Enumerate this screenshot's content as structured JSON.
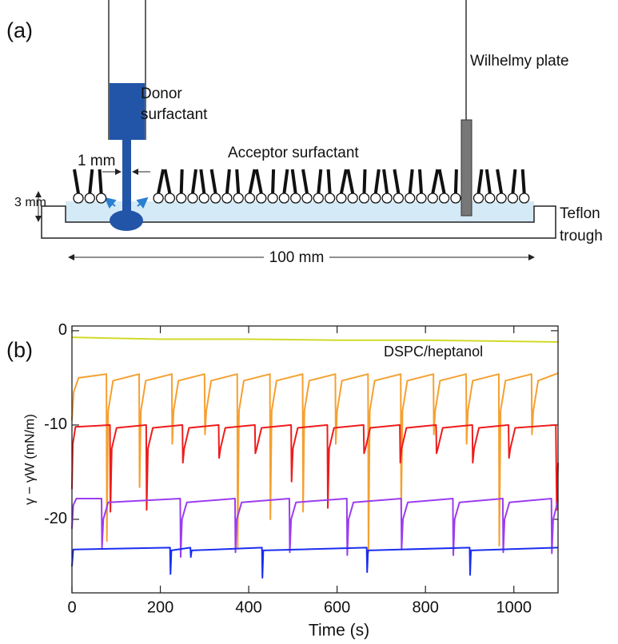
{
  "diagram": {
    "panel_label": "(a)",
    "donor": [
      "Donor",
      "surfactant"
    ],
    "plate": "Wilhelmy plate",
    "acceptor": "Acceptor surfactant",
    "gap": "1 mm",
    "depth": "3 mm",
    "trough": [
      "Teflon",
      "trough"
    ],
    "length": "100 mm"
  },
  "chart_data": {
    "type": "line",
    "panel_label": "(b)",
    "x_label": "Time (s)",
    "y_label": "γ − γW (mN/m)",
    "annotation": "DSPC/heptanol",
    "xlim": [
      0,
      1100
    ],
    "xticks": [
      0,
      200,
      400,
      600,
      800,
      1000
    ],
    "ylim": [
      -27.8,
      0.5
    ],
    "yticks": [
      0,
      -10,
      -20
    ],
    "series": [
      {
        "color": "#d2da2a",
        "x": [
          0,
          200,
          400,
          600,
          800,
          1100
        ],
        "values": [
          -0.7,
          -0.9,
          -0.9,
          -1.0,
          -1.0,
          -1.2
        ]
      },
      {
        "color": "#f5a030",
        "x": [
          0,
          4,
          15,
          78,
          79,
          82,
          93,
          152,
          153,
          156,
          167,
          226,
          227,
          230,
          241,
          300,
          301,
          304,
          315,
          374,
          375,
          378,
          389,
          448,
          449,
          452,
          463,
          522,
          523,
          526,
          537,
          596,
          597,
          600,
          611,
          670,
          671,
          674,
          685,
          744,
          745,
          748,
          759,
          818,
          819,
          822,
          833,
          892,
          893,
          896,
          907,
          966,
          967,
          970,
          981,
          1040,
          1041,
          1044,
          1055,
          1100
        ],
        "values": [
          -9.5,
          -6.5,
          -5,
          -4.6,
          -22.3,
          -8.5,
          -5.3,
          -4.6,
          -16.6,
          -8.5,
          -5.3,
          -4.6,
          -12,
          -8.5,
          -5.3,
          -4.6,
          -11,
          -8.5,
          -5.3,
          -4.6,
          -23,
          -8.5,
          -5.3,
          -4.6,
          -20,
          -8.5,
          -5.3,
          -4.6,
          -19.2,
          -8.5,
          -5.3,
          -4.6,
          -12,
          -8.5,
          -5.3,
          -4.6,
          -23.5,
          -8.5,
          -5.3,
          -4.6,
          -19,
          -8.5,
          -5.3,
          -4.6,
          -11,
          -8.5,
          -5.3,
          -4.6,
          -12,
          -8.5,
          -5.3,
          -4.6,
          -22.8,
          -8.5,
          -5.3,
          -4.6,
          -11,
          -8.5,
          -5.3,
          -4.5
        ]
      },
      {
        "color": "#ee1c1c",
        "x": [
          0,
          2,
          8,
          86,
          87,
          90,
          101,
          168,
          169,
          172,
          183,
          250,
          251,
          254,
          265,
          332,
          333,
          336,
          347,
          414,
          415,
          418,
          429,
          496,
          497,
          500,
          511,
          578,
          579,
          582,
          593,
          660,
          661,
          664,
          675,
          742,
          743,
          746,
          757,
          824,
          825,
          828,
          839,
          906,
          907,
          910,
          921,
          988,
          989,
          992,
          1003,
          1095,
          1097,
          1100
        ],
        "values": [
          -16.8,
          -12,
          -10.2,
          -10,
          -19.2,
          -12.5,
          -10.3,
          -10,
          -19,
          -12.5,
          -10.3,
          -10,
          -14,
          -12.5,
          -10.3,
          -10,
          -13.5,
          -12.5,
          -10.3,
          -10,
          -13,
          -12.5,
          -10.3,
          -10,
          -16,
          -12.5,
          -10.3,
          -10,
          -18.8,
          -12.5,
          -10.3,
          -10,
          -13,
          -12.5,
          -10.3,
          -10,
          -14,
          -12.5,
          -10.3,
          -10,
          -13,
          -12.5,
          -10.3,
          -10,
          -14,
          -12.5,
          -10.3,
          -10,
          -13.5,
          -12.5,
          -10.3,
          -10,
          -19,
          -14
        ]
      },
      {
        "color": "#9b3df0",
        "x": [
          0,
          3,
          10,
          67,
          68,
          71,
          82,
          245,
          246,
          249,
          260,
          369,
          370,
          373,
          384,
          492,
          493,
          496,
          507,
          622,
          623,
          626,
          637,
          745,
          746,
          749,
          760,
          862,
          863,
          866,
          877,
          975,
          976,
          979,
          990,
          1085,
          1086,
          1089,
          1100
        ],
        "values": [
          -21,
          -18.5,
          -17.8,
          -17.8,
          -23,
          -20,
          -18.2,
          -17.8,
          -24,
          -20,
          -18.2,
          -17.8,
          -23.5,
          -20,
          -18.2,
          -17.8,
          -23.5,
          -20,
          -18.2,
          -17.8,
          -23.8,
          -20,
          -18.2,
          -17.8,
          -23.2,
          -20,
          -18.2,
          -17.8,
          -23.8,
          -20,
          -18.2,
          -17.8,
          -23.5,
          -20,
          -18.2,
          -17.8,
          -23.6,
          -20,
          -18
        ]
      },
      {
        "color": "#1a2ef0",
        "x": [
          0,
          3,
          222,
          223,
          225,
          268,
          269,
          271,
          430,
          431,
          433,
          667,
          668,
          670,
          900,
          901,
          903,
          1100
        ],
        "values": [
          -25,
          -23.2,
          -23,
          -25.8,
          -23.3,
          -23,
          -24,
          -23.3,
          -23,
          -26.2,
          -23.3,
          -23,
          -25.6,
          -23.3,
          -23,
          -25.9,
          -23.3,
          -23
        ]
      }
    ]
  }
}
